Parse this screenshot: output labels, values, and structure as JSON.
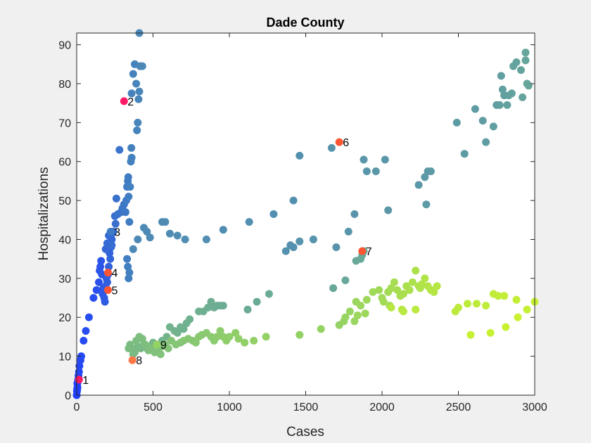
{
  "chart_data": {
    "type": "scatter",
    "title": "Dade County",
    "xlabel": "Cases",
    "ylabel": "Hospitalizations",
    "xlim": [
      0,
      3000
    ],
    "ylim": [
      0,
      93
    ],
    "xticks": [
      0,
      500,
      1000,
      1500,
      2000,
      2500,
      3000
    ],
    "yticks": [
      0,
      10,
      20,
      30,
      40,
      50,
      60,
      70,
      80,
      90
    ],
    "grid": false,
    "colormap": [
      "#1f3dff",
      "#3f7cc3",
      "#5a97a8",
      "#72b38e",
      "#94d264",
      "#c9f230"
    ],
    "highlight_colors": [
      "#ff1a66",
      "#ff5533",
      "#ff7744"
    ],
    "points": [
      [
        0,
        0
      ],
      [
        2,
        1
      ],
      [
        3,
        1.5
      ],
      [
        5,
        2
      ],
      [
        4,
        3
      ],
      [
        8,
        3.5
      ],
      [
        10,
        4
      ],
      [
        12,
        5
      ],
      [
        15,
        6
      ],
      [
        18,
        7.5
      ],
      [
        25,
        9
      ],
      [
        30,
        10
      ],
      [
        45,
        14
      ],
      [
        60,
        16.5
      ],
      [
        80,
        20
      ],
      [
        110,
        25
      ],
      [
        130,
        27
      ],
      [
        145,
        29
      ],
      [
        150,
        32
      ],
      [
        155,
        33
      ],
      [
        160,
        34.5
      ],
      [
        165,
        31
      ],
      [
        170,
        26
      ],
      [
        175,
        27.5
      ],
      [
        180,
        25
      ],
      [
        185,
        24
      ],
      [
        190,
        28
      ],
      [
        195,
        30
      ],
      [
        200,
        29
      ],
      [
        205,
        31
      ],
      [
        210,
        33
      ],
      [
        215,
        36.5
      ],
      [
        220,
        35
      ],
      [
        225,
        38
      ],
      [
        230,
        40
      ],
      [
        190,
        37.5
      ],
      [
        200,
        39
      ],
      [
        210,
        41
      ],
      [
        230,
        41.5
      ],
      [
        240,
        42
      ],
      [
        230,
        38.5
      ],
      [
        250,
        46
      ],
      [
        255,
        44
      ],
      [
        260,
        50.5
      ],
      [
        270,
        46.5
      ],
      [
        280,
        63
      ],
      [
        290,
        47
      ],
      [
        300,
        48
      ],
      [
        310,
        49
      ],
      [
        320,
        47
      ],
      [
        325,
        50
      ],
      [
        330,
        53.5
      ],
      [
        335,
        55
      ],
      [
        338,
        56
      ],
      [
        340,
        51
      ],
      [
        345,
        44.5
      ],
      [
        330,
        35
      ],
      [
        335,
        33
      ],
      [
        340,
        30
      ],
      [
        345,
        31.5
      ],
      [
        350,
        53.5
      ],
      [
        355,
        60
      ],
      [
        360,
        61
      ],
      [
        358,
        63.5
      ],
      [
        360,
        77.5
      ],
      [
        370,
        82.5
      ],
      [
        380,
        85
      ],
      [
        390,
        80
      ],
      [
        395,
        68
      ],
      [
        400,
        70
      ],
      [
        405,
        76
      ],
      [
        410,
        78
      ],
      [
        415,
        84.5
      ],
      [
        420,
        84.5
      ],
      [
        430,
        84.5
      ],
      [
        410,
        93
      ],
      [
        370,
        37.5
      ],
      [
        400,
        40
      ],
      [
        440,
        43
      ],
      [
        460,
        42
      ],
      [
        480,
        40.5
      ],
      [
        560,
        44.5
      ],
      [
        580,
        44.5
      ],
      [
        610,
        41.5
      ],
      [
        660,
        41
      ],
      [
        710,
        40
      ],
      [
        850,
        40
      ],
      [
        960,
        42.5
      ],
      [
        1130,
        44.5
      ],
      [
        1290,
        46.5
      ],
      [
        1420,
        50
      ],
      [
        1460,
        61.5
      ],
      [
        1370,
        37
      ],
      [
        1400,
        38.5
      ],
      [
        1420,
        38
      ],
      [
        1460,
        39.5
      ],
      [
        1550,
        40
      ],
      [
        1670,
        63.5
      ],
      [
        1700,
        38
      ],
      [
        1780,
        42
      ],
      [
        1820,
        46.5
      ],
      [
        1880,
        60.5
      ],
      [
        1900,
        57.5
      ],
      [
        1960,
        57.5
      ],
      [
        2020,
        60.5
      ],
      [
        2040,
        47.5
      ],
      [
        2240,
        54
      ],
      [
        2280,
        56
      ],
      [
        2300,
        57.5
      ],
      [
        2320,
        57.5
      ],
      [
        2290,
        49
      ],
      [
        2490,
        70
      ],
      [
        2540,
        62
      ],
      [
        2610,
        73.5
      ],
      [
        2660,
        70.5
      ],
      [
        2680,
        65
      ],
      [
        2730,
        69
      ],
      [
        2750,
        74.5
      ],
      [
        2770,
        74.5
      ],
      [
        2780,
        82
      ],
      [
        2790,
        78.5
      ],
      [
        2800,
        77
      ],
      [
        2820,
        74.5
      ],
      [
        2830,
        77
      ],
      [
        2850,
        77.5
      ],
      [
        2860,
        84.5
      ],
      [
        2880,
        85.5
      ],
      [
        2910,
        83.5
      ],
      [
        2920,
        76.5
      ],
      [
        2940,
        86
      ],
      [
        2950,
        80
      ],
      [
        2960,
        79.5
      ],
      [
        2940,
        88
      ],
      [
        1680,
        27.5
      ],
      [
        1760,
        29.5
      ],
      [
        1830,
        34.5
      ],
      [
        1860,
        35
      ],
      [
        1870,
        36
      ],
      [
        1880,
        37
      ],
      [
        1180,
        24
      ],
      [
        1260,
        26
      ],
      [
        1120,
        22
      ],
      [
        960,
        23
      ],
      [
        940,
        23
      ],
      [
        920,
        23
      ],
      [
        900,
        22.5
      ],
      [
        880,
        24
      ],
      [
        860,
        22.5
      ],
      [
        800,
        21.5
      ],
      [
        830,
        21.5
      ],
      [
        740,
        19.5
      ],
      [
        720,
        18.5
      ],
      [
        700,
        17
      ],
      [
        680,
        17.5
      ],
      [
        660,
        16
      ],
      [
        640,
        16.5
      ],
      [
        610,
        17.5
      ],
      [
        590,
        15
      ],
      [
        560,
        14
      ],
      [
        540,
        13
      ],
      [
        520,
        12.5
      ],
      [
        500,
        13.5
      ],
      [
        480,
        12.5
      ],
      [
        460,
        12
      ],
      [
        440,
        13
      ],
      [
        420,
        12
      ],
      [
        400,
        12.5
      ],
      [
        380,
        11
      ],
      [
        370,
        10.5
      ],
      [
        360,
        12
      ],
      [
        350,
        13
      ],
      [
        340,
        12
      ],
      [
        390,
        14
      ],
      [
        410,
        15
      ],
      [
        430,
        14.5
      ],
      [
        450,
        13
      ],
      [
        470,
        11.5
      ],
      [
        490,
        12
      ],
      [
        510,
        11
      ],
      [
        530,
        12
      ],
      [
        550,
        10.5
      ],
      [
        560,
        12.5
      ],
      [
        580,
        13
      ],
      [
        600,
        12
      ],
      [
        620,
        14
      ],
      [
        650,
        13
      ],
      [
        680,
        13.5
      ],
      [
        700,
        14
      ],
      [
        730,
        14.5
      ],
      [
        760,
        14
      ],
      [
        780,
        13.5
      ],
      [
        800,
        15
      ],
      [
        820,
        15.5
      ],
      [
        850,
        16
      ],
      [
        880,
        15
      ],
      [
        900,
        14
      ],
      [
        920,
        15
      ],
      [
        940,
        16.5
      ],
      [
        960,
        15
      ],
      [
        980,
        14
      ],
      [
        1000,
        15
      ],
      [
        1040,
        16
      ],
      [
        1060,
        14.5
      ],
      [
        1100,
        13.5
      ],
      [
        1160,
        14
      ],
      [
        1240,
        15
      ],
      [
        1460,
        15.5
      ],
      [
        1600,
        17
      ],
      [
        1720,
        18
      ],
      [
        1750,
        19
      ],
      [
        1760,
        20
      ],
      [
        1790,
        21.5
      ],
      [
        1820,
        19
      ],
      [
        1830,
        24
      ],
      [
        1840,
        20.5
      ],
      [
        1860,
        23
      ],
      [
        1890,
        21
      ],
      [
        1900,
        24.5
      ],
      [
        1940,
        26.5
      ],
      [
        1980,
        27
      ],
      [
        2000,
        25
      ],
      [
        2010,
        24
      ],
      [
        2040,
        26.5
      ],
      [
        2050,
        23
      ],
      [
        2060,
        27.5
      ],
      [
        2080,
        29
      ],
      [
        2100,
        27
      ],
      [
        2120,
        25.5
      ],
      [
        2140,
        26
      ],
      [
        2160,
        28
      ],
      [
        2180,
        27
      ],
      [
        2200,
        29
      ],
      [
        2220,
        32
      ],
      [
        2240,
        28
      ],
      [
        2250,
        27.5
      ],
      [
        2260,
        28.5
      ],
      [
        2280,
        30
      ],
      [
        2300,
        28
      ],
      [
        2320,
        27
      ],
      [
        2340,
        26.5
      ],
      [
        2360,
        28
      ],
      [
        2060,
        22.5
      ],
      [
        2130,
        22
      ],
      [
        2140,
        21.5
      ],
      [
        2220,
        22
      ],
      [
        2480,
        21.5
      ],
      [
        2500,
        22.5
      ],
      [
        2560,
        23.5
      ],
      [
        2620,
        23.5
      ],
      [
        2680,
        23
      ],
      [
        2730,
        26
      ],
      [
        2760,
        25.5
      ],
      [
        2800,
        25.5
      ],
      [
        2880,
        24.5
      ],
      [
        2950,
        22
      ],
      [
        3000,
        24
      ],
      [
        2580,
        15.5
      ],
      [
        2710,
        16
      ],
      [
        2810,
        17.5
      ],
      [
        2890,
        20
      ]
    ],
    "highlights": [
      {
        "label": "1",
        "x": 15,
        "y": 4,
        "color": "#ff1a66"
      },
      {
        "label": "2",
        "x": 310,
        "y": 75.5,
        "color": "#ff1a66"
      },
      {
        "label": "3",
        "x": 222,
        "y": 42,
        "color": "#3f7cc3"
      },
      {
        "label": "4",
        "x": 205,
        "y": 31.5,
        "color": "#ff5533"
      },
      {
        "label": "5",
        "x": 205,
        "y": 27,
        "color": "#ff5533"
      },
      {
        "label": "6",
        "x": 1720,
        "y": 65,
        "color": "#ff5533"
      },
      {
        "label": "7",
        "x": 1870,
        "y": 37,
        "color": "#ff5533"
      },
      {
        "label": "8",
        "x": 365,
        "y": 9,
        "color": "#ff7744"
      },
      {
        "label": "9",
        "x": 525,
        "y": 13,
        "color": "#94d264"
      }
    ]
  }
}
